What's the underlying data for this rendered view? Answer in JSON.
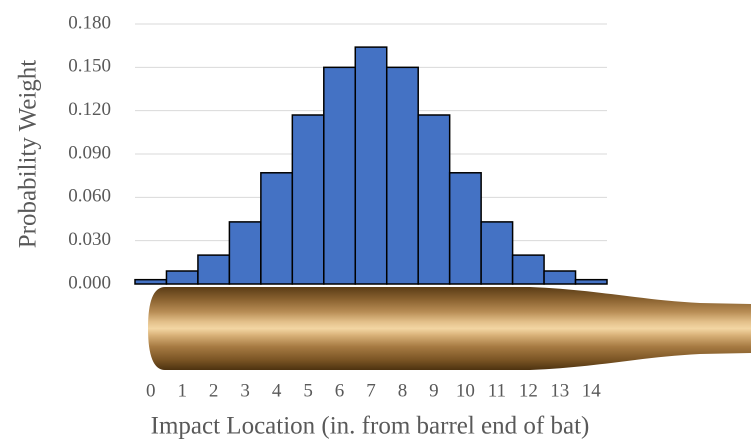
{
  "chart_data": {
    "type": "bar",
    "x_label": "Impact Location (in. from barrel end of bat)",
    "y_label": "Probability Weight",
    "categories": [
      "0",
      "1",
      "2",
      "3",
      "4",
      "5",
      "6",
      "7",
      "8",
      "9",
      "10",
      "11",
      "12",
      "13",
      "14"
    ],
    "values": [
      0.003,
      0.009,
      0.02,
      0.043,
      0.077,
      0.117,
      0.15,
      0.164,
      0.15,
      0.117,
      0.077,
      0.043,
      0.02,
      0.009,
      0.003
    ],
    "color": "#4472c4",
    "ylim": [
      0,
      0.18
    ],
    "yticks": [
      {
        "value": 0,
        "label": "0.000"
      },
      {
        "value": 0.03,
        "label": "0.030"
      },
      {
        "value": 0.06,
        "label": "0.060"
      },
      {
        "value": 0.09,
        "label": "0.090"
      },
      {
        "value": 0.12,
        "label": "0.120"
      },
      {
        "value": 0.15,
        "label": "0.150"
      },
      {
        "value": 0.18,
        "label": "0.180"
      }
    ],
    "grid": true
  }
}
